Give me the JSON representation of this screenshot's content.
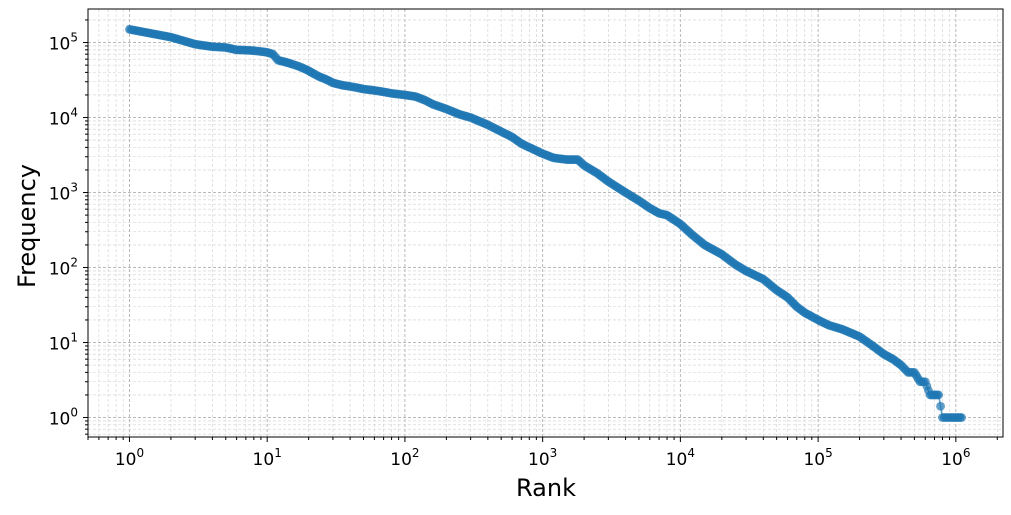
{
  "chart_data": {
    "type": "line",
    "title": "",
    "xlabel": "Rank",
    "ylabel": "Frequency",
    "x_scale": "log",
    "y_scale": "log",
    "xlim": [
      0.5,
      2200000
    ],
    "ylim": [
      0.55,
      280000
    ],
    "grid": "major and minor, dashed",
    "series": [
      {
        "marker": "circle",
        "color": "#1f77b4",
        "x": [
          1,
          2,
          3,
          4,
          5,
          6,
          7,
          8,
          9,
          10,
          11,
          12,
          13,
          14,
          15,
          16,
          17,
          18,
          19,
          20,
          22,
          24,
          26,
          28,
          30,
          35,
          40,
          45,
          50,
          60,
          70,
          80,
          100,
          120,
          140,
          160,
          200,
          250,
          300,
          400,
          500,
          600,
          700,
          800,
          1000,
          1200,
          1500,
          1800,
          2000,
          2500,
          3000,
          4000,
          5000,
          6000,
          7000,
          8000,
          10000,
          12000,
          15000,
          20000,
          25000,
          30000,
          40000,
          50000,
          60000,
          70000,
          80000,
          100000,
          120000,
          150000,
          200000,
          250000,
          300000,
          350000,
          400000,
          450000,
          500000,
          550000,
          600000,
          650000,
          700000,
          750000,
          800000,
          900000,
          1000000,
          1100000
        ],
        "y": [
          150000,
          118000,
          95000,
          88000,
          86000,
          80000,
          79000,
          78000,
          76000,
          74000,
          70000,
          58000,
          56000,
          54000,
          52000,
          50000,
          48000,
          46000,
          44000,
          42000,
          38000,
          35000,
          33000,
          31000,
          29000,
          27000,
          26000,
          25000,
          24000,
          23000,
          22000,
          21000,
          20000,
          19000,
          17000,
          15000,
          13000,
          11000,
          10000,
          8000,
          6500,
          5500,
          4500,
          4000,
          3300,
          2900,
          2750,
          2750,
          2300,
          1800,
          1400,
          1000,
          780,
          620,
          530,
          500,
          380,
          280,
          200,
          150,
          110,
          90,
          70,
          50,
          40,
          30,
          25,
          20,
          17,
          15,
          12,
          9,
          7,
          6,
          5,
          4,
          4,
          3,
          3,
          2,
          2,
          2,
          1,
          1,
          1,
          1
        ]
      }
    ],
    "x_ticks": [
      {
        "value": 1,
        "base": "10",
        "exp": "0"
      },
      {
        "value": 10,
        "base": "10",
        "exp": "1"
      },
      {
        "value": 100,
        "base": "10",
        "exp": "2"
      },
      {
        "value": 1000,
        "base": "10",
        "exp": "3"
      },
      {
        "value": 10000,
        "base": "10",
        "exp": "4"
      },
      {
        "value": 100000,
        "base": "10",
        "exp": "5"
      },
      {
        "value": 1000000,
        "base": "10",
        "exp": "6"
      }
    ],
    "y_ticks": [
      {
        "value": 1,
        "base": "10",
        "exp": "0"
      },
      {
        "value": 10,
        "base": "10",
        "exp": "1"
      },
      {
        "value": 100,
        "base": "10",
        "exp": "2"
      },
      {
        "value": 1000,
        "base": "10",
        "exp": "3"
      },
      {
        "value": 10000,
        "base": "10",
        "exp": "4"
      },
      {
        "value": 100000,
        "base": "10",
        "exp": "5"
      }
    ]
  }
}
